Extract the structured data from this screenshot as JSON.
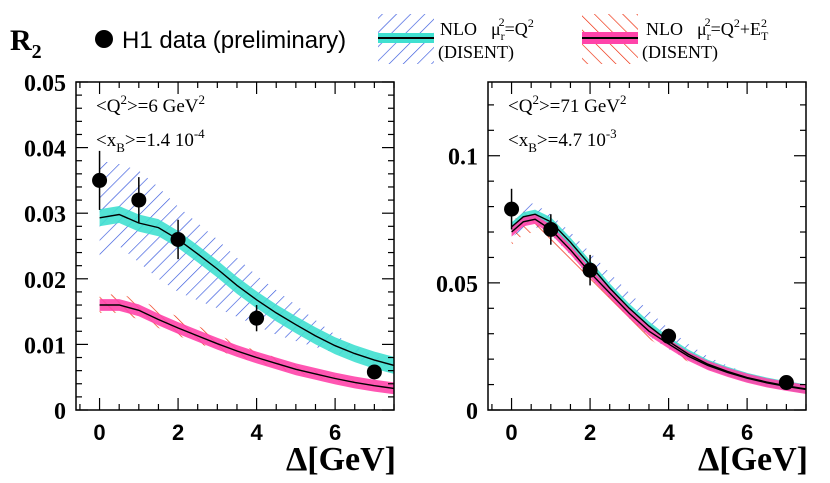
{
  "header": {
    "ylabel_main": "R",
    "ylabel_sub": "2",
    "legend_data": "H1 data (preliminary)",
    "legend_nlo1_line1": "NLO",
    "legend_nlo1_mu": "μ",
    "legend_nlo1_mu_sub": "r",
    "legend_nlo1_mu_sup": "2",
    "legend_nlo1_eq": "=Q",
    "legend_nlo1_eq_sup": "2",
    "legend_nlo1_line2": "(DISENT)",
    "legend_nlo2_line1": "NLO",
    "legend_nlo2_mu": "μ",
    "legend_nlo2_mu_sub": "r",
    "legend_nlo2_mu_sup": "2",
    "legend_nlo2_eq": "=Q",
    "legend_nlo2_eq_sup": "2",
    "legend_nlo2_plus": "+E",
    "legend_nlo2_plus_sup": "2",
    "legend_nlo2_plus_sub": "T",
    "legend_nlo2_line2": "(DISENT)"
  },
  "colors": {
    "data": "#000000",
    "nlo_q2_band": "#40e0d0",
    "nlo_q2_line": "#000000",
    "nlo_q2_hatch": "#3355dd",
    "nlo_q2et_band": "#ff44aa",
    "nlo_q2et_hatch": "#ee2200"
  },
  "chart_data": [
    {
      "type": "scatter",
      "annotation_q2": "<Q",
      "annotation_q2_sup": "2",
      "annotation_q2_val": ">=6 GeV",
      "annotation_q2_unit_sup": "2",
      "annotation_x": "<x",
      "annotation_x_sub": "B",
      "annotation_x_val": ">=1.4 10",
      "annotation_x_exp": "-4",
      "xlabel": "Δ[GeV]",
      "xlim": [
        -0.6,
        7.5
      ],
      "ylim": [
        0,
        0.05
      ],
      "xticks": [
        0,
        2,
        4,
        6
      ],
      "xtick_labels": [
        "0",
        "2",
        "4",
        "6"
      ],
      "yticks": [
        0,
        0.01,
        0.02,
        0.03,
        0.04,
        0.05
      ],
      "ytick_labels": [
        "0",
        "0.01",
        "0.02",
        "0.03",
        "0.04",
        "0.05"
      ],
      "data_points": [
        {
          "x": 0,
          "y": 0.035,
          "err": 0.0045
        },
        {
          "x": 1,
          "y": 0.032,
          "err": 0.0035
        },
        {
          "x": 2,
          "y": 0.026,
          "err": 0.003
        },
        {
          "x": 4,
          "y": 0.014,
          "err": 0.002
        },
        {
          "x": 7,
          "y": 0.0058,
          "err": 0.0008
        }
      ],
      "series": [
        {
          "x": [
            0,
            0.5,
            1,
            1.5,
            2,
            2.5,
            3,
            3.5,
            4,
            4.5,
            5,
            5.5,
            6,
            6.5,
            7,
            7.5
          ],
          "values": [
            0.0293,
            0.0298,
            0.0285,
            0.0278,
            0.026,
            0.0238,
            0.0215,
            0.019,
            0.0168,
            0.0148,
            0.013,
            0.0113,
            0.0098,
            0.0086,
            0.0076,
            0.0068
          ],
          "band": 0.0013,
          "hatch_upper": [
            0.038,
            0.0375,
            0.0365,
            0.034,
            0.031,
            0.0285,
            0.026,
            0.0232,
            0.0205,
            0.0183,
            0.016,
            0.0137,
            0.0115,
            0.0097,
            0.0083,
            0.0072
          ],
          "hatch_lower": [
            0.0235,
            0.025,
            0.0225,
            0.02,
            0.018,
            0.0167,
            0.0155,
            0.0142,
            0.0128,
            0.0115,
            0.0105,
            0.0096,
            0.0087,
            0.0078,
            0.0071,
            0.0064
          ]
        },
        {
          "x": [
            0,
            0.5,
            1,
            1.5,
            2,
            2.5,
            3,
            3.5,
            4,
            4.5,
            5,
            5.5,
            6,
            6.5,
            7,
            7.5
          ],
          "values": [
            0.016,
            0.016,
            0.0152,
            0.0138,
            0.0125,
            0.0113,
            0.0101,
            0.009,
            0.008,
            0.0071,
            0.0062,
            0.0055,
            0.0048,
            0.0042,
            0.0037,
            0.0033
          ],
          "band": 0.0009,
          "hatch_upper": [
            0.0175,
            0.0177,
            0.0168,
            0.0155,
            0.0142,
            0.0128,
            0.0115,
            0.0102,
            0.009,
            0.008,
            0.0069,
            0.006,
            0.0052,
            0.0045,
            0.0039,
            0.0034
          ],
          "hatch_lower": [
            0.0148,
            0.0148,
            0.0138,
            0.0125,
            0.0113,
            0.0102,
            0.0091,
            0.0081,
            0.0072,
            0.0064,
            0.0056,
            0.005,
            0.0044,
            0.0039,
            0.0035,
            0.0032
          ]
        }
      ]
    },
    {
      "type": "scatter",
      "annotation_q2": "<Q",
      "annotation_q2_sup": "2",
      "annotation_q2_val": ">=71 GeV",
      "annotation_q2_unit_sup": "2",
      "annotation_x": "<x",
      "annotation_x_sub": "B",
      "annotation_x_val": ">=4.7 10",
      "annotation_x_exp": "-3",
      "xlabel": "Δ[GeV]",
      "xlim": [
        -0.6,
        7.5
      ],
      "ylim": [
        0,
        0.129
      ],
      "xticks": [
        0,
        2,
        4,
        6
      ],
      "xtick_labels": [
        "0",
        "2",
        "4",
        "6"
      ],
      "yticks": [
        0,
        0.05,
        0.1
      ],
      "ytick_labels": [
        "0",
        "0.05",
        "0.1"
      ],
      "data_points": [
        {
          "x": 0,
          "y": 0.079,
          "err": 0.008
        },
        {
          "x": 1,
          "y": 0.071,
          "err": 0.006
        },
        {
          "x": 2,
          "y": 0.055,
          "err": 0.006
        },
        {
          "x": 4,
          "y": 0.029,
          "err": 0.003
        },
        {
          "x": 7,
          "y": 0.0108,
          "err": 0.0012
        }
      ],
      "series": [
        {
          "x": [
            0,
            0.3,
            0.6,
            1,
            1.5,
            2,
            2.5,
            3,
            3.5,
            4,
            4.5,
            5,
            5.5,
            6,
            6.5,
            7,
            7.5
          ],
          "values": [
            0.072,
            0.076,
            0.077,
            0.074,
            0.066,
            0.057,
            0.048,
            0.04,
            0.033,
            0.027,
            0.022,
            0.018,
            0.0152,
            0.0128,
            0.011,
            0.0095,
            0.0083
          ],
          "band": 0.0018,
          "hatch_upper": [
            0.079,
            0.082,
            0.081,
            0.077,
            0.07,
            0.062,
            0.054,
            0.046,
            0.039,
            0.032,
            0.026,
            0.021,
            0.0175,
            0.0145,
            0.012,
            0.0103,
            0.0088
          ],
          "hatch_lower": [
            0.068,
            0.071,
            0.072,
            0.069,
            0.061,
            0.052,
            0.044,
            0.036,
            0.029,
            0.024,
            0.0195,
            0.016,
            0.0135,
            0.0115,
            0.01,
            0.0088,
            0.0078
          ]
        },
        {
          "x": [
            0,
            0.3,
            0.6,
            1,
            1.5,
            2,
            2.5,
            3,
            3.5,
            4,
            4.5,
            5,
            5.5,
            6,
            6.5,
            7,
            7.5
          ],
          "values": [
            0.07,
            0.074,
            0.075,
            0.071,
            0.063,
            0.054,
            0.046,
            0.038,
            0.031,
            0.026,
            0.0212,
            0.0175,
            0.0148,
            0.0125,
            0.0107,
            0.0093,
            0.0081
          ],
          "band": 0.0018,
          "hatch_upper": [
            0.074,
            0.078,
            0.078,
            0.074,
            0.066,
            0.057,
            0.049,
            0.041,
            0.034,
            0.028,
            0.023,
            0.019,
            0.016,
            0.0135,
            0.0115,
            0.0099,
            0.0086
          ],
          "hatch_lower": [
            0.065,
            0.069,
            0.07,
            0.066,
            0.058,
            0.05,
            0.042,
            0.035,
            0.028,
            0.023,
            0.019,
            0.0158,
            0.0134,
            0.0114,
            0.0098,
            0.0086,
            0.0076
          ]
        }
      ]
    }
  ]
}
